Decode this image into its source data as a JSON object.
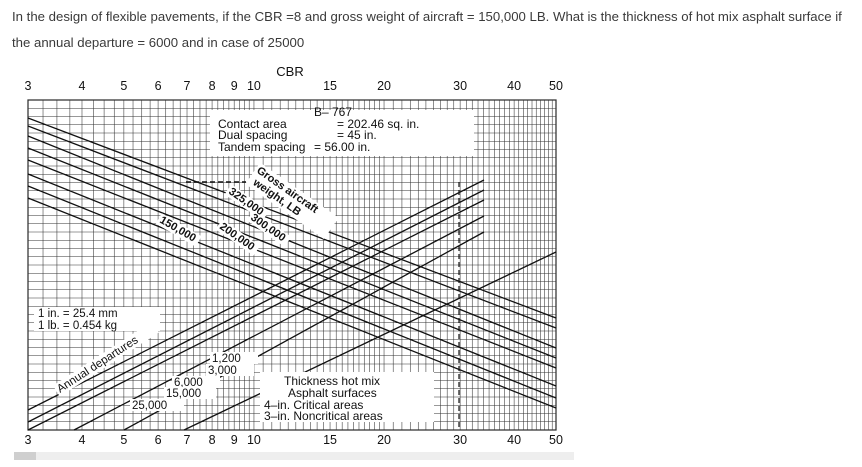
{
  "question": {
    "line1": "In the design of flexible pavements, if the CBR =8 and gross weight of aircraft = 150,000 LB. What is the thickness of hot mix asphalt surface if",
    "line2": "the annual departure = 6000 and in case of 25000"
  },
  "chart": {
    "axis_title": "CBR",
    "cbr_ticks": [
      "3",
      "4",
      "5",
      "6",
      "7",
      "8",
      "9",
      "10",
      "15",
      "20",
      "30",
      "40",
      "50"
    ],
    "aircraft": "B– 767",
    "spec": {
      "row1_label": "Contact area",
      "row1_value": "= 202.46 sq. in.",
      "row2_label": "Dual spacing",
      "row2_value": "= 45 in.",
      "row3_label": "Tandem spacing",
      "row3_value": "= 56.00 in."
    },
    "weight_title_1": "Gross aircraft",
    "weight_title_2": "weight, LB",
    "weights": [
      "325,000",
      "300,000",
      "200,000",
      "150,000"
    ],
    "units_line1": "1 in. = 25.4 mm",
    "units_line2": "1 lb. = 0.454 kg",
    "departures_title": "Annual departures",
    "departures": [
      "1,200",
      "3,000",
      "6,000",
      "15,000",
      "25,000"
    ],
    "legend": {
      "line1": "Thickness hot mix",
      "line2": "Asphalt surfaces",
      "line3": "4–in. Critical areas",
      "line4": "3–in. Noncritical areas"
    }
  }
}
